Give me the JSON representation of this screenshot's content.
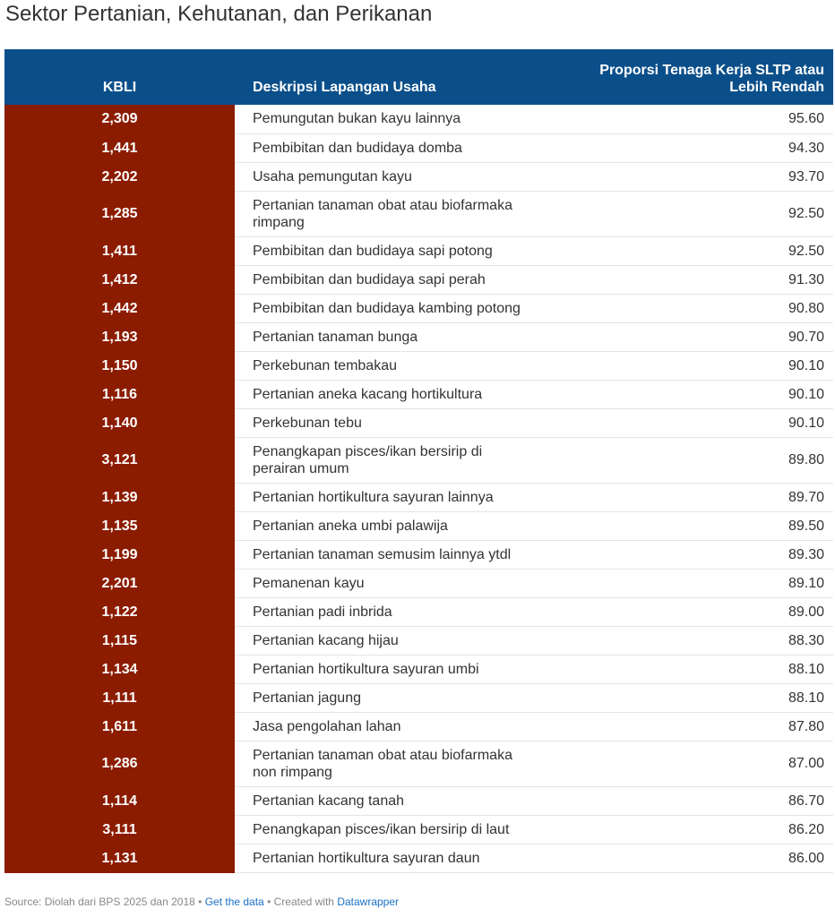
{
  "title": "Sektor Pertanian, Kehutanan, dan Perikanan",
  "chart_data": {
    "type": "table",
    "columns": [
      "KBLI",
      "Deskripsi Lapangan Usaha",
      "Proporsi Tenaga Kerja SLTP atau Lebih Rendah"
    ],
    "rows": [
      {
        "kbli": "2,309",
        "desc": "Pemungutan bukan kayu lainnya",
        "prop": "95.60"
      },
      {
        "kbli": "1,441",
        "desc": "Pembibitan dan budidaya domba",
        "prop": "94.30"
      },
      {
        "kbli": "2,202",
        "desc": "Usaha pemungutan kayu",
        "prop": "93.70"
      },
      {
        "kbli": "1,285",
        "desc": "Pertanian tanaman obat atau biofarmaka rimpang",
        "prop": "92.50"
      },
      {
        "kbli": "1,411",
        "desc": "Pembibitan dan budidaya sapi potong",
        "prop": "92.50"
      },
      {
        "kbli": "1,412",
        "desc": "Pembibitan dan budidaya sapi perah",
        "prop": "91.30"
      },
      {
        "kbli": "1,442",
        "desc": "Pembibitan dan budidaya kambing potong",
        "prop": "90.80"
      },
      {
        "kbli": "1,193",
        "desc": "Pertanian tanaman bunga",
        "prop": "90.70"
      },
      {
        "kbli": "1,150",
        "desc": "Perkebunan tembakau",
        "prop": "90.10"
      },
      {
        "kbli": "1,116",
        "desc": "Pertanian aneka kacang hortikultura",
        "prop": "90.10"
      },
      {
        "kbli": "1,140",
        "desc": "Perkebunan tebu",
        "prop": "90.10"
      },
      {
        "kbli": "3,121",
        "desc": "Penangkapan pisces/ikan bersirip di perairan umum",
        "prop": "89.80"
      },
      {
        "kbli": "1,139",
        "desc": "Pertanian hortikultura sayuran lainnya",
        "prop": "89.70"
      },
      {
        "kbli": "1,135",
        "desc": "Pertanian aneka umbi palawija",
        "prop": "89.50"
      },
      {
        "kbli": "1,199",
        "desc": "Pertanian tanaman semusim lainnya ytdl",
        "prop": "89.30"
      },
      {
        "kbli": "2,201",
        "desc": "Pemanenan kayu",
        "prop": "89.10"
      },
      {
        "kbli": "1,122",
        "desc": "Pertanian padi inbrida",
        "prop": "89.00"
      },
      {
        "kbli": "1,115",
        "desc": "Pertanian kacang hijau",
        "prop": "88.30"
      },
      {
        "kbli": "1,134",
        "desc": "Pertanian hortikultura sayuran umbi",
        "prop": "88.10"
      },
      {
        "kbli": "1,111",
        "desc": "Pertanian jagung",
        "prop": "88.10"
      },
      {
        "kbli": "1,611",
        "desc": "Jasa pengolahan lahan",
        "prop": "87.80"
      },
      {
        "kbli": "1,286",
        "desc": "Pertanian tanaman obat atau biofarmaka non rimpang",
        "prop": "87.00"
      },
      {
        "kbli": "1,114",
        "desc": "Pertanian kacang tanah",
        "prop": "86.70"
      },
      {
        "kbli": "3,111",
        "desc": "Penangkapan pisces/ikan bersirip di laut",
        "prop": "86.20"
      },
      {
        "kbli": "1,131",
        "desc": "Pertanian hortikultura sayuran daun",
        "prop": "86.00"
      }
    ]
  },
  "footer": {
    "source": "Source: Diolah dari BPS 2025 dan 2018",
    "sep1": " • ",
    "get_data": "Get the data",
    "sep2": " • Created with ",
    "datawrapper": "Datawrapper"
  },
  "colors": {
    "header_bg": "#0b4f8a",
    "kbli_bg": "#8b1c00",
    "link": "#1a6fc4"
  }
}
